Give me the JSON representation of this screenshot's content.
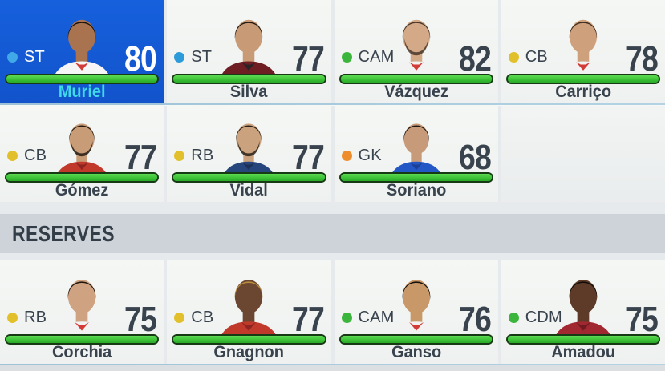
{
  "theme": {
    "page_bg": "#e7eaec",
    "card_bg": "#f2f4f2",
    "selected_card_bg": "#1660dd",
    "selected_name_color": "#3fd9ea",
    "text_color": "#39434e",
    "bar_fill": "#35bb31",
    "bar_border": "#163a14",
    "reserves_bg": "#ced3da",
    "separator_color": "#a9cadc",
    "dot_colors": {
      "ST": "#2d9ad9",
      "CAM": "#3cb53c",
      "CB": "#e2c02b",
      "RB": "#e2c02b",
      "GK": "#ee8d2c",
      "CDM": "#3cb53c"
    }
  },
  "rows": [
    {
      "players": [
        {
          "name": "Muriel",
          "position": "ST",
          "rating": "80",
          "fitness": 100,
          "selected": true,
          "dot_color": "#41a9e8",
          "avatar": {
            "skin": "#aa734f",
            "hair": "#171310",
            "jersey": "#f6f6f6",
            "accent": "#d23b36",
            "beard": false
          }
        },
        {
          "name": "Silva",
          "position": "ST",
          "rating": "77",
          "fitness": 100,
          "selected": false,
          "dot_color": "#2d9ad9",
          "avatar": {
            "skin": "#c89a76",
            "hair": "#241a13",
            "jersey": "#6e1d22",
            "accent": "#2b2226",
            "beard": false
          }
        },
        {
          "name": "Vázquez",
          "position": "CAM",
          "rating": "82",
          "fitness": 100,
          "selected": false,
          "dot_color": "#3cb53c",
          "avatar": {
            "skin": "#d3a987",
            "hair": "#4a372a",
            "jersey": "#f2f2f2",
            "accent": "#d23b36",
            "beard": true
          }
        },
        {
          "name": "Carriço",
          "position": "CB",
          "rating": "78",
          "fitness": 100,
          "selected": false,
          "dot_color": "#e2c02b",
          "avatar": {
            "skin": "#cfa07c",
            "hair": "#3c2e22",
            "jersey": "#f2f2f2",
            "accent": "#d23b36",
            "beard": false
          }
        }
      ]
    },
    {
      "players": [
        {
          "name": "Gómez",
          "position": "CB",
          "rating": "77",
          "fitness": 100,
          "selected": false,
          "dot_color": "#e2c02b",
          "avatar": {
            "skin": "#c99c78",
            "hair": "#241b13",
            "jersey": "#c0392b",
            "accent": "#8e2420",
            "beard": true
          }
        },
        {
          "name": "Vidal",
          "position": "RB",
          "rating": "77",
          "fitness": 100,
          "selected": false,
          "dot_color": "#e2c02b",
          "avatar": {
            "skin": "#caa27e",
            "hair": "#2a2018",
            "jersey": "#27457d",
            "accent": "#1b2f57",
            "beard": true
          }
        },
        {
          "name": "Soriano",
          "position": "GK",
          "rating": "68",
          "fitness": 100,
          "selected": false,
          "dot_color": "#ee8d2c",
          "avatar": {
            "skin": "#c79b79",
            "hair": "#1f1812",
            "jersey": "#2257c5",
            "accent": "#1a3f94",
            "beard": false
          }
        },
        null
      ]
    }
  ],
  "reserves": {
    "label": "RESERVES",
    "players": [
      {
        "name": "Corchia",
        "position": "RB",
        "rating": "75",
        "fitness": 100,
        "selected": false,
        "dot_color": "#e2c02b",
        "avatar": {
          "skin": "#cfa381",
          "hair": "#1f1711",
          "jersey": "#f2f2f2",
          "accent": "#d23b36",
          "beard": false
        }
      },
      {
        "name": "Gnagnon",
        "position": "CB",
        "rating": "77",
        "fitness": 100,
        "selected": false,
        "dot_color": "#e2c02b",
        "avatar": {
          "skin": "#6b4630",
          "hair": "#b98e3e",
          "jersey": "#c0392b",
          "accent": "#8e2420",
          "beard": false
        }
      },
      {
        "name": "Ganso",
        "position": "CAM",
        "rating": "76",
        "fitness": 100,
        "selected": false,
        "dot_color": "#3cb53c",
        "avatar": {
          "skin": "#c99868",
          "hair": "#17120e",
          "jersey": "#f2f2f2",
          "accent": "#d23b36",
          "beard": false
        }
      },
      {
        "name": "Amadou",
        "position": "CDM",
        "rating": "75",
        "fitness": 100,
        "selected": false,
        "dot_color": "#3cb53c",
        "avatar": {
          "skin": "#5d3b28",
          "hair": "#120d0a",
          "jersey": "#a12830",
          "accent": "#6e1a20",
          "beard": false
        }
      }
    ]
  }
}
